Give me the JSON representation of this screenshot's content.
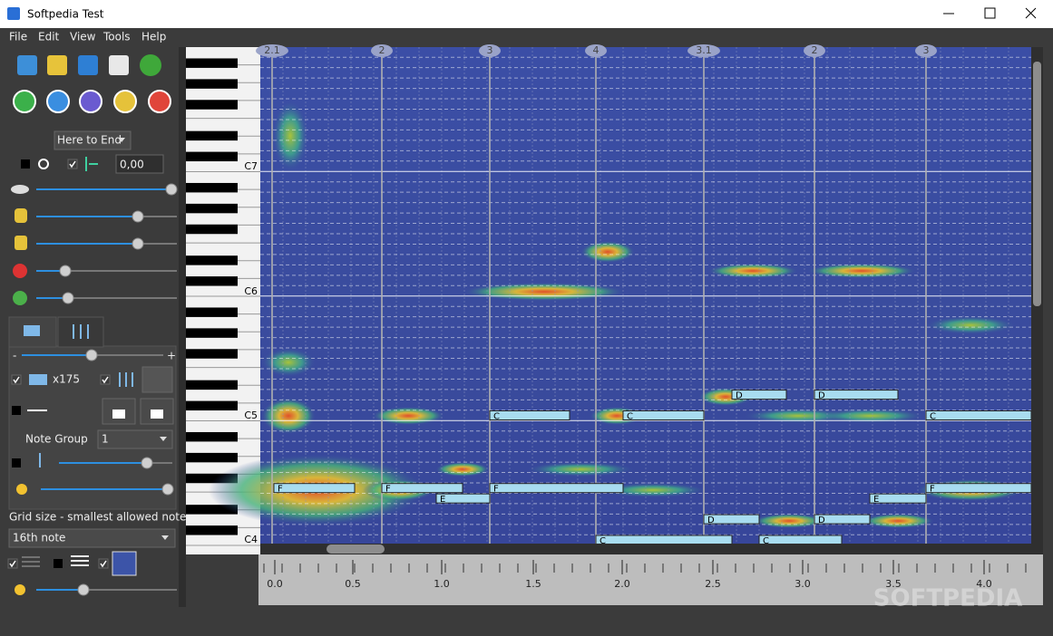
{
  "window": {
    "title": "Softpedia Test"
  },
  "menu": [
    "File",
    "Edit",
    "View",
    "Tools",
    "Help"
  ],
  "controls": {
    "playback_range": "Here to End",
    "position": "0,00",
    "zoom": "x175",
    "slider_min": "-",
    "slider_max": "+",
    "note_group_label": "Note Group",
    "note_group": "1",
    "grid_label": "Grid size - smallest allowed note",
    "grid_value": "16th note"
  },
  "piano": {
    "octave_labels": [
      "C7",
      "C6",
      "C5",
      "C4"
    ]
  },
  "bar_markers": [
    "2.1",
    "2",
    "3",
    "4",
    "3.1",
    "2",
    "3"
  ],
  "notes": [
    "F",
    "F",
    "E",
    "F",
    "C",
    "C",
    "D",
    "D",
    "C",
    "E",
    "F",
    "D",
    "D",
    "C",
    "C"
  ],
  "timeline": [
    "0.0",
    "0.5",
    "1.0",
    "1.5",
    "2.0",
    "2.5",
    "3.0",
    "3.5",
    "4.0"
  ],
  "watermark": "SOFTPEDIA"
}
